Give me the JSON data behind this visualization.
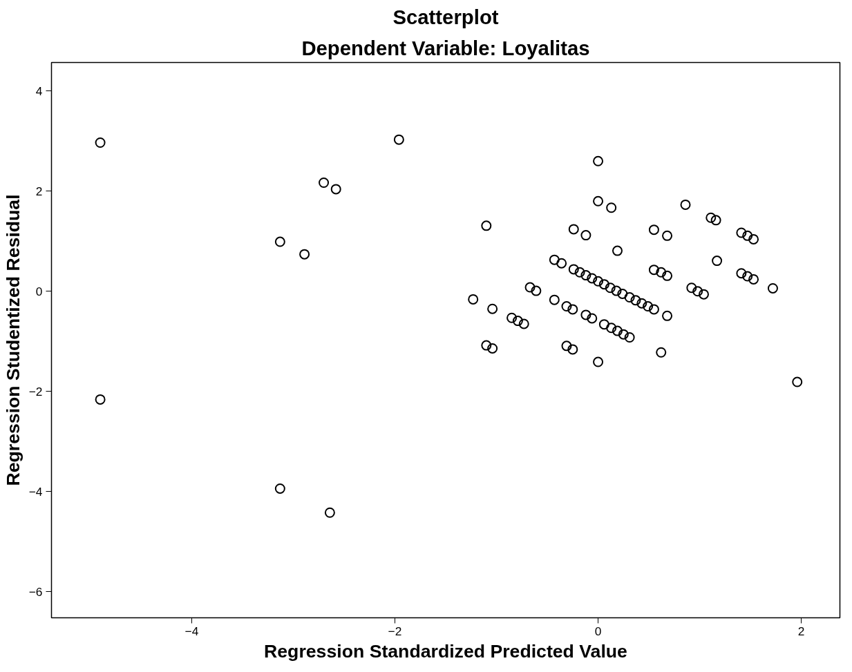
{
  "chart_data": {
    "type": "scatter",
    "title": "Scatterplot",
    "subtitle": "Dependent Variable: Loyalitas",
    "xlabel": "Regression Standardized Predicted Value",
    "ylabel": "Regression Studentized Residual",
    "xlim": [
      -5.38,
      2.38
    ],
    "ylim": [
      -6.52,
      4.57
    ],
    "xticks": [
      -4,
      -2,
      0,
      2
    ],
    "yticks": [
      -6,
      -4,
      -2,
      0,
      2,
      4
    ],
    "grid": false,
    "marker": "circle",
    "series": [
      {
        "color": "#000000",
        "x": [
          0,
          0,
          0.13,
          0.86,
          1.11,
          1.16,
          1.41,
          1.47,
          1.53,
          -1.1,
          -0.24,
          -0.12,
          0.55,
          0.68,
          0.19,
          1.17,
          -0.43,
          -0.36,
          -0.24,
          -0.18,
          -0.12,
          -0.06,
          0,
          0.06,
          0.12,
          0.18,
          0.24,
          0.31,
          0.37,
          0.43,
          0.49,
          0.55,
          0.68,
          0.55,
          0.62,
          0.68,
          1.41,
          1.47,
          1.53,
          1.72,
          0.92,
          0.98,
          1.04,
          -0.67,
          -0.61,
          -1.23,
          -1.04,
          -0.85,
          -0.79,
          -0.73,
          -0.43,
          -0.31,
          -0.25,
          -0.12,
          -0.06,
          0.06,
          0.13,
          0.19,
          0.25,
          0.31,
          -1.1,
          -1.04,
          -0.31,
          -0.25,
          0,
          0.62,
          1.96,
          -4.9,
          -4.9,
          -1.96,
          -2.7,
          -2.58,
          -3.13,
          -2.89,
          -3.13,
          -2.64
        ],
        "values": [
          2.6,
          1.8,
          1.67,
          1.73,
          1.47,
          1.42,
          1.17,
          1.11,
          1.04,
          1.31,
          1.24,
          1.12,
          1.23,
          1.11,
          0.81,
          0.61,
          0.63,
          0.56,
          0.44,
          0.38,
          0.32,
          0.26,
          0.2,
          0.14,
          0.07,
          0.01,
          -0.05,
          -0.12,
          -0.18,
          -0.24,
          -0.3,
          -0.36,
          -0.49,
          0.43,
          0.38,
          0.31,
          0.36,
          0.3,
          0.24,
          0.06,
          0.07,
          0,
          -0.06,
          0.08,
          0.01,
          -0.16,
          -0.35,
          -0.53,
          -0.59,
          -0.65,
          -0.17,
          -0.3,
          -0.36,
          -0.47,
          -0.54,
          -0.66,
          -0.73,
          -0.79,
          -0.86,
          -0.92,
          -1.08,
          -1.14,
          -1.09,
          -1.16,
          -1.41,
          -1.22,
          -1.81,
          2.97,
          -2.16,
          3.03,
          2.17,
          2.04,
          0.99,
          0.74,
          -3.94,
          -4.42
        ]
      }
    ]
  }
}
